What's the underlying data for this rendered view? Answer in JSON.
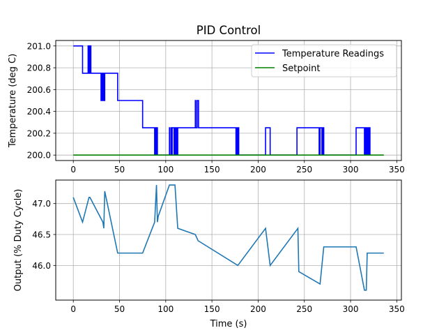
{
  "chart_data": [
    {
      "type": "line",
      "title": "PID Control",
      "xlabel": "",
      "ylabel": "Temperature (deg C)",
      "xlim": [
        -19,
        355
      ],
      "ylim": [
        199.95,
        201.05
      ],
      "xticks": [
        0,
        50,
        100,
        150,
        200,
        250,
        300,
        350
      ],
      "yticks": [
        200.0,
        200.2,
        200.4,
        200.6,
        200.8,
        201.0
      ],
      "ytick_labels": [
        "200.0",
        "200.2",
        "200.4",
        "200.6",
        "200.8",
        "201.0"
      ],
      "grid": true,
      "legend_position": "top-right",
      "series": [
        {
          "name": "Temperature Readings",
          "color": "#0000ff",
          "step": true,
          "x": [
            0,
            10,
            16,
            17,
            18,
            19,
            30,
            31,
            31.5,
            32,
            32.5,
            33,
            33.5,
            34,
            48,
            75,
            88,
            88.5,
            89,
            89.5,
            90,
            90.5,
            91,
            104,
            104.5,
            106,
            106.5,
            107,
            109,
            110,
            111,
            111.5,
            112,
            113,
            132,
            132.5,
            133,
            134,
            135,
            135.5,
            136,
            176,
            176.5,
            177,
            177.5,
            178,
            178.5,
            179,
            208,
            213,
            242,
            243,
            266,
            267,
            269,
            270,
            271,
            306,
            315,
            315.5,
            316,
            316.5,
            317,
            317.5,
            318,
            318.5,
            319,
            320,
            321,
            322
          ],
          "y": [
            201.0,
            200.75,
            201.0,
            200.75,
            201.0,
            200.75,
            200.5,
            200.75,
            200.5,
            200.75,
            200.5,
            200.75,
            200.5,
            200.75,
            200.5,
            200.25,
            200.0,
            200.25,
            200.0,
            200.25,
            200.0,
            200.25,
            200.0,
            200.25,
            200.0,
            200.25,
            200.0,
            200.25,
            200.0,
            200.25,
            200.0,
            200.25,
            200.0,
            200.25,
            200.5,
            200.25,
            200.25,
            200.5,
            200.5,
            200.25,
            200.25,
            200.0,
            200.25,
            200.0,
            200.25,
            200.0,
            200.25,
            200.0,
            200.25,
            200.0,
            200.25,
            200.25,
            200.0,
            200.25,
            200.0,
            200.25,
            200.0,
            200.25,
            200.0,
            200.25,
            200.0,
            200.25,
            200.0,
            200.25,
            200.0,
            200.25,
            200.0,
            200.25,
            200.0,
            200.0
          ],
          "x_end": 322
        },
        {
          "name": "Setpoint",
          "color": "#008000",
          "step": false,
          "x": [
            0,
            336
          ],
          "y": [
            200.0,
            200.0
          ]
        }
      ]
    },
    {
      "type": "line",
      "title": "",
      "xlabel": "Time (s)",
      "ylabel": "Output (% Duty Cycle)",
      "xlim": [
        -19,
        355
      ],
      "ylim": [
        45.44,
        47.38
      ],
      "xticks": [
        0,
        50,
        100,
        150,
        200,
        250,
        300,
        350
      ],
      "yticks": [
        46.0,
        46.5,
        47.0
      ],
      "ytick_labels": [
        "46.0",
        "46.5",
        "47.0"
      ],
      "grid": true,
      "series": [
        {
          "color": "#1f77b4",
          "step": false,
          "x": [
            0,
            10,
            17,
            18,
            32,
            33,
            34,
            48,
            75,
            88,
            90,
            91,
            92,
            104,
            106,
            110,
            113,
            132,
            135,
            178,
            208,
            213,
            243,
            244,
            267,
            271,
            306,
            315,
            317,
            318,
            336
          ],
          "y": [
            47.1,
            46.7,
            47.1,
            47.1,
            46.7,
            46.6,
            47.2,
            46.2,
            46.2,
            46.7,
            47.3,
            46.7,
            46.8,
            47.3,
            47.3,
            47.3,
            46.6,
            46.5,
            46.4,
            46.0,
            46.6,
            46.0,
            46.6,
            45.9,
            45.7,
            46.3,
            46.3,
            45.6,
            45.6,
            46.2,
            46.2
          ]
        }
      ]
    }
  ]
}
